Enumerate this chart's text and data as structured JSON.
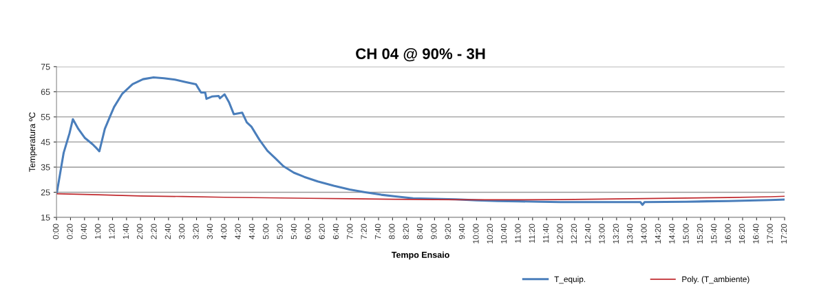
{
  "chart_data": {
    "type": "line",
    "title": "CH 04 @ 90% - 3H",
    "xlabel": "Tempo Ensaio",
    "ylabel": "Temperatura ºC",
    "xlim": [
      0,
      17.3333
    ],
    "ylim": [
      15,
      75
    ],
    "yticks": [
      15,
      25,
      35,
      45,
      55,
      65,
      75
    ],
    "xticks": [
      {
        "value": 0,
        "label": "0:00"
      },
      {
        "value": 0.3333,
        "label": "0:20"
      },
      {
        "value": 0.6667,
        "label": "0:40"
      },
      {
        "value": 1,
        "label": "1:00"
      },
      {
        "value": 1.3333,
        "label": "1:20"
      },
      {
        "value": 1.6667,
        "label": "1:40"
      },
      {
        "value": 2,
        "label": "2:00"
      },
      {
        "value": 2.3333,
        "label": "2:20"
      },
      {
        "value": 2.6667,
        "label": "2:40"
      },
      {
        "value": 3,
        "label": "3:00"
      },
      {
        "value": 3.3333,
        "label": "3:20"
      },
      {
        "value": 3.6667,
        "label": "3:40"
      },
      {
        "value": 4,
        "label": "4:00"
      },
      {
        "value": 4.3333,
        "label": "4:20"
      },
      {
        "value": 4.6667,
        "label": "4:40"
      },
      {
        "value": 5,
        "label": "5:00"
      },
      {
        "value": 5.3333,
        "label": "5:20"
      },
      {
        "value": 5.6667,
        "label": "5:40"
      },
      {
        "value": 6,
        "label": "6:00"
      },
      {
        "value": 6.3333,
        "label": "6:20"
      },
      {
        "value": 6.6667,
        "label": "6:40"
      },
      {
        "value": 7,
        "label": "7:00"
      },
      {
        "value": 7.3333,
        "label": "7:20"
      },
      {
        "value": 7.6667,
        "label": "7:40"
      },
      {
        "value": 8,
        "label": "8:00"
      },
      {
        "value": 8.3333,
        "label": "8:20"
      },
      {
        "value": 8.6667,
        "label": "8:40"
      },
      {
        "value": 9,
        "label": "9:00"
      },
      {
        "value": 9.3333,
        "label": "9:20"
      },
      {
        "value": 9.6667,
        "label": "9:40"
      },
      {
        "value": 10,
        "label": "10:00"
      },
      {
        "value": 10.3333,
        "label": "10:20"
      },
      {
        "value": 10.6667,
        "label": "10:40"
      },
      {
        "value": 11,
        "label": "11:00"
      },
      {
        "value": 11.3333,
        "label": "11:20"
      },
      {
        "value": 11.6667,
        "label": "11:40"
      },
      {
        "value": 12,
        "label": "12:00"
      },
      {
        "value": 12.3333,
        "label": "12:20"
      },
      {
        "value": 12.6667,
        "label": "12:40"
      },
      {
        "value": 13,
        "label": "13:00"
      },
      {
        "value": 13.3333,
        "label": "13:20"
      },
      {
        "value": 13.6667,
        "label": "13:40"
      },
      {
        "value": 14,
        "label": "14:00"
      },
      {
        "value": 14.3333,
        "label": "14:20"
      },
      {
        "value": 14.6667,
        "label": "14:40"
      },
      {
        "value": 15,
        "label": "15:00"
      },
      {
        "value": 15.3333,
        "label": "15:20"
      },
      {
        "value": 15.6667,
        "label": "15:40"
      },
      {
        "value": 16,
        "label": "16:00"
      },
      {
        "value": 16.3333,
        "label": "16:20"
      },
      {
        "value": 16.6667,
        "label": "16:40"
      },
      {
        "value": 17,
        "label": "17:00"
      },
      {
        "value": 17.3333,
        "label": "17:20"
      }
    ],
    "grid": "y",
    "legend": "bottom right",
    "marker": "none",
    "line_style": "solid",
    "series": [
      {
        "name": "T_equip.",
        "color": "#4a7ebb",
        "x": [
          0.01,
          0.17,
          0.31,
          0.39,
          0.52,
          0.67,
          0.86,
          0.96,
          1.02,
          1.15,
          1.28,
          1.37,
          1.56,
          1.81,
          2.06,
          2.31,
          2.56,
          2.82,
          3.07,
          3.32,
          3.38,
          3.44,
          3.54,
          3.57,
          3.7,
          3.86,
          3.89,
          4.0,
          4.11,
          4.22,
          4.42,
          4.53,
          4.64,
          4.83,
          5.02,
          5.21,
          5.4,
          5.65,
          5.9,
          6.22,
          6.6,
          6.98,
          7.35,
          7.73,
          8.11,
          8.49,
          9.0,
          9.5,
          10.0,
          10.5,
          11.0,
          11.5,
          12.0,
          13.0,
          13.9,
          13.95,
          14.0,
          15.0,
          15.5,
          16.0,
          16.5,
          17.0,
          17.33
        ],
        "values": [
          25,
          40.7,
          48.5,
          54.1,
          50.2,
          46.7,
          44.1,
          42.4,
          41.3,
          50.2,
          55.4,
          58.9,
          64.1,
          68.0,
          70.0,
          70.7,
          70.4,
          69.8,
          68.9,
          68.0,
          66.3,
          64.7,
          64.7,
          62.2,
          63.1,
          63.3,
          62.4,
          64.0,
          60.7,
          56.1,
          56.7,
          52.8,
          51.1,
          45.9,
          41.5,
          38.5,
          35.4,
          32.8,
          31.1,
          29.3,
          27.6,
          26.1,
          25.0,
          24.0,
          23.3,
          22.6,
          22.4,
          22.2,
          21.8,
          21.5,
          21.4,
          21.2,
          21.1,
          21.1,
          21.1,
          20.0,
          21.1,
          21.2,
          21.4,
          21.5,
          21.7,
          21.9,
          22.1
        ]
      },
      {
        "name": "Poly. (T_ambiente)",
        "color": "#c0282d",
        "x": [
          0,
          1,
          2,
          3,
          4,
          5,
          6,
          7,
          8,
          9,
          10,
          11,
          12,
          13,
          14,
          15,
          16,
          17,
          17.33
        ],
        "values": [
          24.4,
          24.0,
          23.5,
          23.3,
          23.0,
          22.8,
          22.6,
          22.4,
          22.2,
          22.1,
          22.0,
          22.0,
          22.1,
          22.3,
          22.5,
          22.7,
          22.9,
          23.2,
          23.4
        ]
      }
    ]
  }
}
